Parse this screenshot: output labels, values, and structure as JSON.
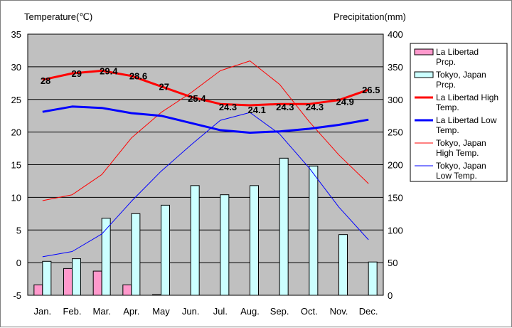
{
  "chart_data": {
    "type": "bar",
    "categories": [
      "Jan.",
      "Feb.",
      "Mar.",
      "Apr.",
      "May",
      "Jun.",
      "Jul.",
      "Aug.",
      "Sep.",
      "Oct.",
      "Nov.",
      "Dec."
    ],
    "y_left": {
      "label": "Temperature(℃)",
      "min": -5,
      "max": 35,
      "step": 5
    },
    "y_right": {
      "label": "Precipitation(mm)",
      "min": 0,
      "max": 400,
      "step": 50
    },
    "grid": true,
    "legend_position": "right",
    "series": [
      {
        "name": "La Libertad Prcp.",
        "kind": "bar",
        "axis": "right",
        "color": "#ff99cc",
        "values": [
          16,
          41,
          37,
          16,
          1,
          0,
          0,
          0,
          0,
          0,
          0,
          0
        ]
      },
      {
        "name": "Tokyo, Japan Prcp.",
        "kind": "bar",
        "axis": "right",
        "color": "#ccffff",
        "values": [
          52,
          56,
          118,
          125,
          138,
          168,
          154,
          168,
          210,
          198,
          93,
          51
        ]
      },
      {
        "name": "La Libertad High Temp.",
        "kind": "line",
        "axis": "left",
        "color": "#ff0000",
        "width": 3,
        "values": [
          28,
          29,
          29.4,
          28.6,
          27,
          25.4,
          24.3,
          24.1,
          24.3,
          24.3,
          24.9,
          26.5
        ],
        "labels": [
          "28",
          "29",
          "29.4",
          "28.6",
          "27",
          "25.4",
          "24.3",
          "24.1",
          "24.3",
          "24.3",
          "24.9",
          "26.5"
        ]
      },
      {
        "name": "La Libertad Low Temp.",
        "kind": "line",
        "axis": "left",
        "color": "#0000ff",
        "width": 3,
        "values": [
          23.1,
          23.9,
          23.7,
          22.9,
          22.5,
          21.4,
          20.3,
          19.9,
          20.1,
          20.5,
          21.1,
          21.9
        ]
      },
      {
        "name": "Tokyo, Japan High Temp.",
        "kind": "line",
        "axis": "left",
        "color": "#ff0000",
        "width": 1,
        "values": [
          9.5,
          10.4,
          13.5,
          19.1,
          23.0,
          26.0,
          29.4,
          30.9,
          27.3,
          21.6,
          16.5,
          12.1
        ]
      },
      {
        "name": "Tokyo, Japan Low Temp.",
        "kind": "line",
        "axis": "left",
        "color": "#0000ff",
        "width": 1,
        "values": [
          0.9,
          1.7,
          4.4,
          9.4,
          14.0,
          18.0,
          21.8,
          23.0,
          19.7,
          14.5,
          8.5,
          3.5
        ]
      }
    ],
    "legend": [
      {
        "lines": [
          "La Libertad",
          "Prcp."
        ],
        "kind": "bar",
        "color": "#ff99cc"
      },
      {
        "lines": [
          "Tokyo, Japan",
          "Prcp."
        ],
        "kind": "bar",
        "color": "#ccffff"
      },
      {
        "lines": [
          "La Libertad High",
          "Temp."
        ],
        "kind": "line",
        "color": "#ff0000",
        "width": 3
      },
      {
        "lines": [
          "La Libertad Low",
          "Temp."
        ],
        "kind": "line",
        "color": "#0000ff",
        "width": 3
      },
      {
        "lines": [
          "Tokyo, Japan",
          "High Temp."
        ],
        "kind": "line",
        "color": "#ff0000",
        "width": 1
      },
      {
        "lines": [
          "Tokyo, Japan",
          "Low Temp."
        ],
        "kind": "line",
        "color": "#0000ff",
        "width": 1
      }
    ],
    "plot_background": "#c0c0c0"
  }
}
